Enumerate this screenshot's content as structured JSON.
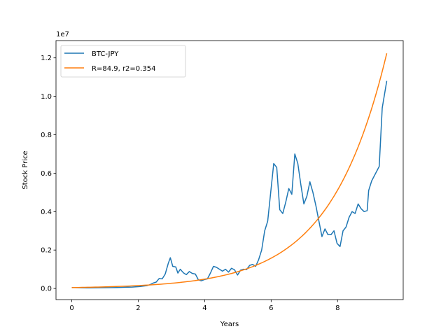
{
  "chart_data": {
    "type": "line",
    "xlabel": "Years",
    "ylabel": "Stock Price",
    "offset_text": "1e7",
    "xlim": [
      -0.475,
      9.975
    ],
    "ylim": [
      -580000,
      12900000
    ],
    "x_ticks": [
      0,
      2,
      4,
      6,
      8
    ],
    "y_ticks": [
      0,
      2000000,
      4000000,
      6000000,
      8000000,
      10000000,
      12000000
    ],
    "y_tick_labels": [
      "0.0",
      "0.2",
      "0.4",
      "0.6",
      "0.8",
      "1.0",
      "1.2"
    ],
    "legend_position": "upper-left",
    "grid": false,
    "series": [
      {
        "name": "BTC-JPY",
        "color": "#1f77b4",
        "points": [
          [
            0.0,
            50000
          ],
          [
            0.25,
            40000
          ],
          [
            0.5,
            30000
          ],
          [
            0.75,
            35000
          ],
          [
            1.0,
            40000
          ],
          [
            1.25,
            45000
          ],
          [
            1.5,
            50000
          ],
          [
            1.75,
            60000
          ],
          [
            2.0,
            70000
          ],
          [
            2.25,
            100000
          ],
          [
            2.5,
            150000
          ],
          [
            2.6,
            200000
          ],
          [
            2.7,
            280000
          ],
          [
            2.8,
            330000
          ],
          [
            2.9,
            520000
          ],
          [
            3.0,
            500000
          ],
          [
            3.1,
            750000
          ],
          [
            3.2,
            1300000
          ],
          [
            3.27,
            1600000
          ],
          [
            3.35,
            1150000
          ],
          [
            3.45,
            1120000
          ],
          [
            3.52,
            800000
          ],
          [
            3.6,
            1000000
          ],
          [
            3.7,
            820000
          ],
          [
            3.8,
            720000
          ],
          [
            3.9,
            880000
          ],
          [
            4.0,
            780000
          ],
          [
            4.1,
            750000
          ],
          [
            4.2,
            450000
          ],
          [
            4.3,
            400000
          ],
          [
            4.4,
            460000
          ],
          [
            4.5,
            500000
          ],
          [
            4.6,
            800000
          ],
          [
            4.7,
            1150000
          ],
          [
            4.8,
            1100000
          ],
          [
            4.9,
            1000000
          ],
          [
            5.0,
            900000
          ],
          [
            5.1,
            1000000
          ],
          [
            5.2,
            850000
          ],
          [
            5.3,
            1050000
          ],
          [
            5.4,
            970000
          ],
          [
            5.5,
            700000
          ],
          [
            5.6,
            950000
          ],
          [
            5.7,
            1000000
          ],
          [
            5.8,
            980000
          ],
          [
            5.9,
            1200000
          ],
          [
            6.0,
            1250000
          ],
          [
            6.1,
            1150000
          ],
          [
            6.2,
            1500000
          ],
          [
            6.3,
            2000000
          ],
          [
            6.4,
            3000000
          ],
          [
            6.5,
            3500000
          ],
          [
            6.6,
            5000000
          ],
          [
            6.7,
            6500000
          ],
          [
            6.8,
            6300000
          ],
          [
            6.9,
            4100000
          ],
          [
            7.0,
            3900000
          ],
          [
            7.1,
            4500000
          ],
          [
            7.2,
            5200000
          ],
          [
            7.3,
            4900000
          ],
          [
            7.4,
            7000000
          ],
          [
            7.5,
            6500000
          ],
          [
            7.6,
            5400000
          ],
          [
            7.7,
            4400000
          ],
          [
            7.8,
            4800000
          ],
          [
            7.9,
            5550000
          ],
          [
            8.0,
            5000000
          ],
          [
            8.1,
            4300000
          ],
          [
            8.2,
            3500000
          ],
          [
            8.3,
            2700000
          ],
          [
            8.4,
            3100000
          ],
          [
            8.5,
            2800000
          ],
          [
            8.6,
            2800000
          ],
          [
            8.7,
            3000000
          ],
          [
            8.8,
            2350000
          ],
          [
            8.9,
            2180000
          ],
          [
            9.0,
            3000000
          ],
          [
            9.1,
            3200000
          ],
          [
            9.2,
            3700000
          ],
          [
            9.3,
            4000000
          ],
          [
            9.4,
            3900000
          ],
          [
            9.5,
            4400000
          ],
          [
            9.6,
            4150000
          ],
          [
            9.7,
            4000000
          ],
          [
            9.8,
            4050000
          ],
          [
            9.85,
            5100000
          ],
          [
            9.95,
            5600000
          ],
          [
            10.2,
            6350000
          ],
          [
            10.3,
            9400000
          ],
          [
            10.45,
            10800000
          ]
        ]
      },
      {
        "name": "R=84.9, r2=0.354",
        "color": "#ff7f0e",
        "model": {
          "a": 46000,
          "b": 0.589,
          "x_start": 0,
          "x_end": 9.48
        }
      }
    ]
  }
}
